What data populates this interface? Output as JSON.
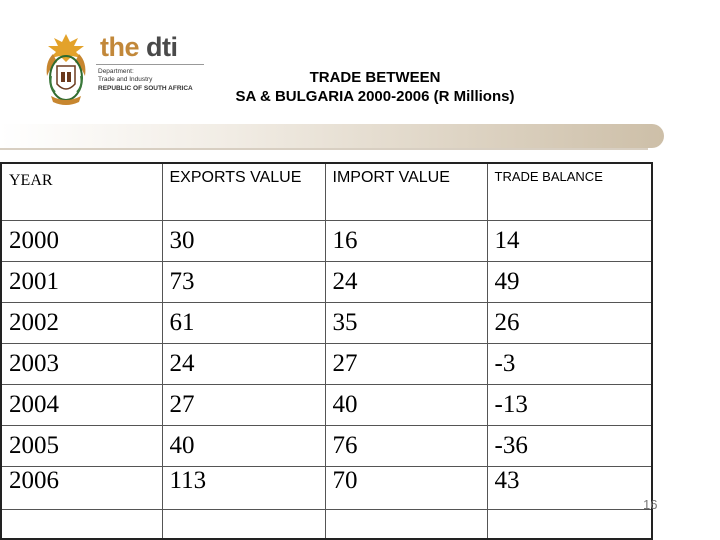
{
  "header": {
    "brand_the": "the ",
    "brand_dti": "dti",
    "dept_line1": "Department:",
    "dept_line2": "Trade and Industry",
    "dept_line3": "REPUBLIC OF SOUTH AFRICA",
    "title_line1": "TRADE BETWEEN",
    "title_line2": "SA & BULGARIA 2000-2006 (R Millions)"
  },
  "table": {
    "headers": {
      "year": "YEAR",
      "exports": "EXPORTS VALUE",
      "imports": "IMPORT VALUE",
      "balance": "TRADE BALANCE"
    },
    "rows": [
      {
        "year": "2000",
        "exports": "30",
        "imports": "16",
        "balance": "14"
      },
      {
        "year": "2001",
        "exports": "73",
        "imports": "24",
        "balance": "49"
      },
      {
        "year": "2002",
        "exports": "61",
        "imports": "35",
        "balance": "26"
      },
      {
        "year": "2003",
        "exports": "24",
        "imports": "27",
        "balance": "-3"
      },
      {
        "year": "2004",
        "exports": "27",
        "imports": "40",
        "balance": "-13"
      },
      {
        "year": "2005",
        "exports": "40",
        "imports": "76",
        "balance": "-36"
      },
      {
        "year": "2006",
        "exports": "113",
        "imports": "70",
        "balance": "43"
      }
    ]
  },
  "footer": {
    "slide_number": "16"
  },
  "colors": {
    "brand_gold": "#c2883a",
    "brand_grey": "#4a4a4a",
    "band": "#cdbfa8"
  }
}
